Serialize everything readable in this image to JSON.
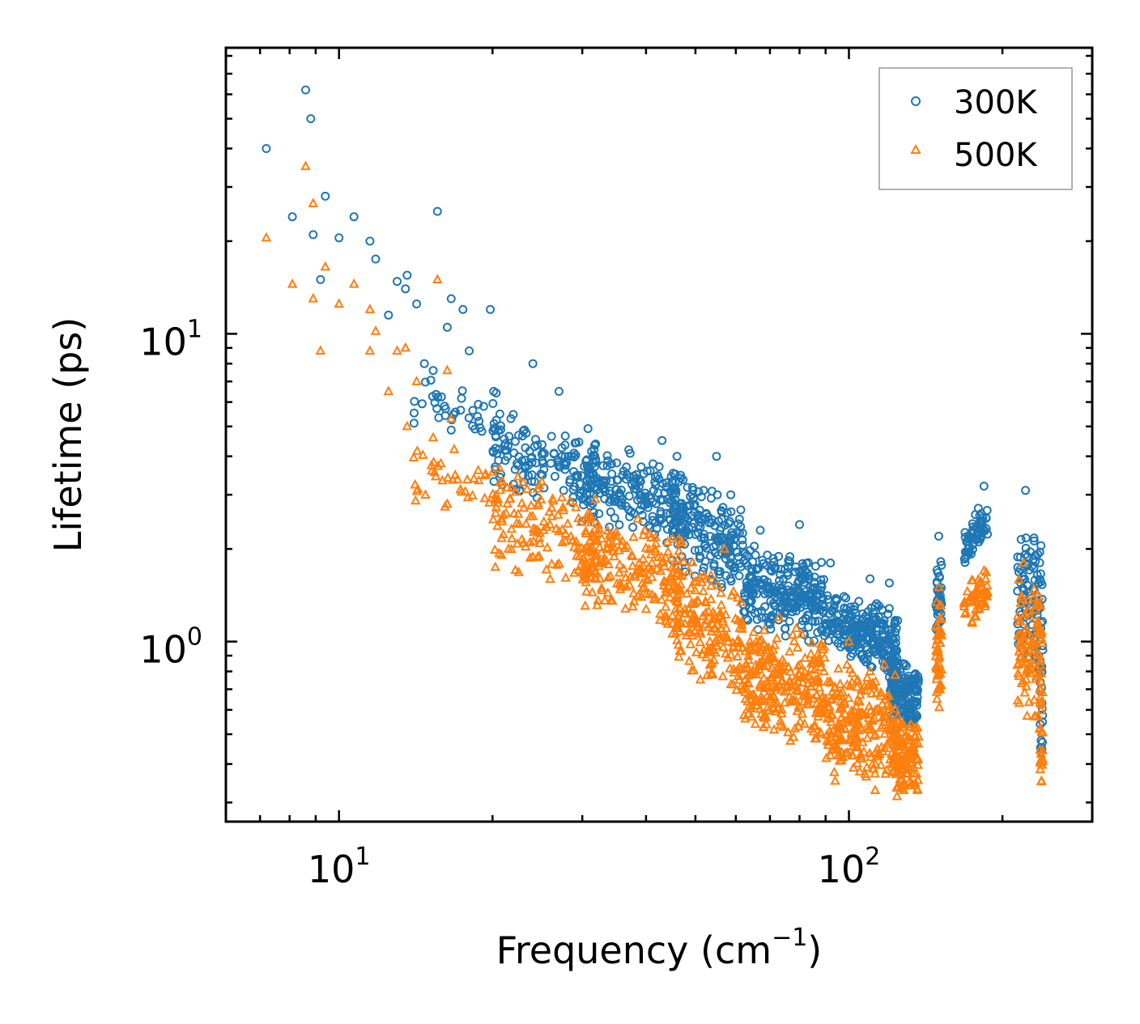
{
  "chart_data": {
    "type": "scatter",
    "title": "",
    "xlabel": "Frequency (cm",
    "xlabel_exp": "−1",
    "xlabel_close": ")",
    "ylabel": "Lifetime (ps)",
    "xscale": "log",
    "yscale": "log",
    "xlim": [
      6,
      300
    ],
    "ylim": [
      0.26,
      85
    ],
    "legend": "top-right",
    "grid": false,
    "x_major_ticks": [
      {
        "value": 10,
        "base": "10",
        "exp": "1"
      },
      {
        "value": 100,
        "base": "10",
        "exp": "2"
      }
    ],
    "y_major_ticks": [
      {
        "value": 1,
        "base": "10",
        "exp": "0"
      },
      {
        "value": 10,
        "base": "10",
        "exp": "1"
      }
    ],
    "series": [
      {
        "name": "300K",
        "marker": "circle",
        "color": "#1f77b4",
        "points": [
          [
            7.2,
            40.0
          ],
          [
            8.1,
            24.0
          ],
          [
            8.6,
            62.0
          ],
          [
            8.8,
            50.0
          ],
          [
            8.9,
            21.0
          ],
          [
            9.2,
            15.0
          ],
          [
            9.4,
            28.0
          ],
          [
            10.0,
            20.5
          ],
          [
            10.7,
            24.0
          ],
          [
            11.5,
            20.0
          ],
          [
            11.8,
            17.5
          ],
          [
            12.5,
            11.5
          ],
          [
            13.0,
            14.8
          ],
          [
            13.5,
            14.0
          ],
          [
            13.6,
            15.5
          ],
          [
            14.2,
            12.5
          ],
          [
            14.7,
            8.0
          ],
          [
            15.3,
            7.6
          ],
          [
            15.6,
            25.0
          ],
          [
            16.3,
            10.5
          ],
          [
            16.6,
            13.0
          ],
          [
            17.5,
            12.0
          ],
          [
            18.0,
            8.8
          ],
          [
            19.8,
            12.0
          ],
          [
            20.1,
            6.5
          ],
          [
            24.0,
            8.0
          ],
          [
            27.0,
            6.5
          ],
          [
            37.0,
            4.2
          ],
          [
            43.0,
            4.5
          ],
          [
            46.0,
            4.0
          ],
          [
            55.0,
            4.0
          ],
          [
            55.2,
            3.0
          ],
          [
            58.0,
            2.0
          ],
          [
            61.0,
            2.5
          ],
          [
            67.0,
            2.3
          ],
          [
            80.0,
            2.4
          ],
          [
            92.0,
            1.8
          ],
          [
            110.0,
            1.6
          ],
          [
            120.0,
            1.55
          ],
          [
            150.0,
            2.2
          ],
          [
            184.0,
            3.2
          ],
          [
            222.0,
            3.1
          ]
        ],
        "clusters": [
          {
            "xmin": 14,
            "xmax": 22,
            "ymin_start": 4.2,
            "ymax_start": 8.5,
            "ymin_end": 3.8,
            "ymax_end": 6.5,
            "n": 50
          },
          {
            "xmin": 20,
            "xmax": 32,
            "ymin_start": 3.0,
            "ymax_start": 5.5,
            "ymin_end": 2.6,
            "ymax_end": 5.0,
            "n": 130
          },
          {
            "xmin": 30,
            "xmax": 47,
            "ymin_start": 2.4,
            "ymax_start": 4.5,
            "ymin_end": 2.0,
            "ymax_end": 3.8,
            "n": 190
          },
          {
            "xmin": 45,
            "xmax": 62,
            "ymin_start": 1.7,
            "ymax_start": 3.8,
            "ymin_end": 1.3,
            "ymax_end": 3.0,
            "n": 180
          },
          {
            "xmin": 62,
            "xmax": 90,
            "ymin_start": 1.1,
            "ymax_start": 2.1,
            "ymin_end": 0.95,
            "ymax_end": 1.9,
            "n": 260
          },
          {
            "xmin": 90,
            "xmax": 125,
            "ymin_start": 0.9,
            "ymax_start": 1.5,
            "ymin_end": 0.75,
            "ymax_end": 1.3,
            "n": 230
          },
          {
            "xmin": 120,
            "xmax": 137,
            "ymin_start": 0.55,
            "ymax_start": 0.9,
            "ymin_end": 0.5,
            "ymax_end": 0.85,
            "n": 160
          },
          {
            "xmin": 148,
            "xmax": 152,
            "ymin_start": 0.95,
            "ymax_start": 1.9,
            "ymin_end": 0.95,
            "ymax_end": 1.9,
            "n": 45
          },
          {
            "xmin": 168,
            "xmax": 187,
            "ymin_start": 1.7,
            "ymax_start": 2.4,
            "ymin_end": 2.2,
            "ymax_end": 3.0,
            "n": 60
          },
          {
            "xmin": 214,
            "xmax": 238,
            "ymin_start": 0.9,
            "ymax_start": 2.6,
            "ymin_end": 0.7,
            "ymax_end": 2.4,
            "n": 90
          },
          {
            "xmin": 237,
            "xmax": 240,
            "ymin_start": 0.3,
            "ymax_start": 1.8,
            "ymin_end": 0.3,
            "ymax_end": 1.8,
            "n": 30
          }
        ]
      },
      {
        "name": "500K",
        "marker": "triangle",
        "color": "#ff7f0e",
        "points": [
          [
            7.2,
            20.5
          ],
          [
            8.1,
            14.5
          ],
          [
            8.6,
            35.0
          ],
          [
            8.9,
            26.5
          ],
          [
            8.9,
            13.0
          ],
          [
            9.2,
            8.8
          ],
          [
            9.4,
            16.5
          ],
          [
            10.0,
            12.5
          ],
          [
            10.7,
            14.5
          ],
          [
            11.5,
            12.0
          ],
          [
            11.5,
            8.8
          ],
          [
            11.8,
            10.2
          ],
          [
            12.5,
            6.5
          ],
          [
            13.0,
            8.8
          ],
          [
            13.5,
            9.0
          ],
          [
            13.6,
            5.0
          ],
          [
            14.2,
            7.0
          ],
          [
            15.3,
            4.6
          ],
          [
            15.6,
            15.0
          ],
          [
            16.3,
            7.6
          ],
          [
            16.6,
            5.3
          ],
          [
            16.3,
            2.8
          ],
          [
            20.5,
            2.9
          ],
          [
            21.5,
            2.0
          ],
          [
            25.0,
            3.3
          ],
          [
            35.0,
            2.2
          ],
          [
            57.0,
            2.0
          ],
          [
            58.0,
            1.0
          ],
          [
            64.0,
            1.0
          ],
          [
            73.0,
            1.2
          ],
          [
            100.0,
            1.0
          ],
          [
            110.0,
            0.8
          ],
          [
            150.0,
            1.5
          ],
          [
            184.0,
            1.7
          ],
          [
            220.0,
            1.8
          ]
        ],
        "clusters": [
          {
            "xmin": 14,
            "xmax": 22,
            "ymin_start": 2.7,
            "ymax_start": 4.8,
            "ymin_end": 2.4,
            "ymax_end": 4.3,
            "n": 40
          },
          {
            "xmin": 20,
            "xmax": 32,
            "ymin_start": 1.6,
            "ymax_start": 3.8,
            "ymin_end": 1.4,
            "ymax_end": 3.2,
            "n": 130
          },
          {
            "xmin": 30,
            "xmax": 47,
            "ymin_start": 1.2,
            "ymax_start": 2.8,
            "ymin_end": 1.0,
            "ymax_end": 2.5,
            "n": 190
          },
          {
            "xmin": 45,
            "xmax": 62,
            "ymin_start": 0.8,
            "ymax_start": 2.0,
            "ymin_end": 0.6,
            "ymax_end": 1.5,
            "n": 180
          },
          {
            "xmin": 62,
            "xmax": 90,
            "ymin_start": 0.5,
            "ymax_start": 1.2,
            "ymin_end": 0.45,
            "ymax_end": 1.1,
            "n": 260
          },
          {
            "xmin": 90,
            "xmax": 125,
            "ymin_start": 0.33,
            "ymax_start": 0.9,
            "ymin_end": 0.32,
            "ymax_end": 0.85,
            "n": 230
          },
          {
            "xmin": 120,
            "xmax": 137,
            "ymin_start": 0.3,
            "ymax_start": 0.6,
            "ymin_end": 0.3,
            "ymax_end": 0.55,
            "n": 140
          },
          {
            "xmin": 148,
            "xmax": 152,
            "ymin_start": 0.6,
            "ymax_start": 1.4,
            "ymin_end": 0.6,
            "ymax_end": 1.4,
            "n": 45
          },
          {
            "xmin": 168,
            "xmax": 187,
            "ymin_start": 1.05,
            "ymax_start": 1.55,
            "ymin_end": 1.2,
            "ymax_end": 1.8,
            "n": 55
          },
          {
            "xmin": 214,
            "xmax": 238,
            "ymin_start": 0.55,
            "ymax_start": 1.6,
            "ymin_end": 0.5,
            "ymax_end": 1.7,
            "n": 90
          },
          {
            "xmin": 237,
            "xmax": 240,
            "ymin_start": 0.28,
            "ymax_start": 1.3,
            "ymin_end": 0.28,
            "ymax_end": 1.3,
            "n": 30
          }
        ]
      }
    ]
  }
}
